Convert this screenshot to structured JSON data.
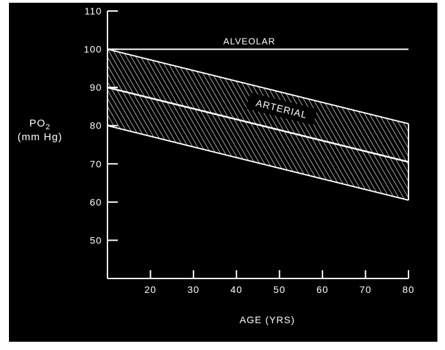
{
  "chart_data": {
    "type": "line",
    "title": "",
    "ylabel_line1": "PO",
    "ylabel_sub": "2",
    "ylabel_line2": "(mm Hg)",
    "xlabel": "AGE (YRS)",
    "xlim": [
      10,
      80
    ],
    "ylim": [
      40,
      110
    ],
    "xticks": [
      20,
      30,
      40,
      50,
      60,
      70,
      80
    ],
    "yticks": [
      50,
      60,
      70,
      80,
      90,
      100,
      110
    ],
    "grid": false,
    "series": [
      {
        "name": "ALVEOLAR",
        "x": [
          10,
          80
        ],
        "y": [
          100,
          100
        ]
      },
      {
        "name": "ARTERIAL",
        "x": [
          10,
          80
        ],
        "y": [
          90,
          70.5
        ]
      }
    ],
    "band": {
      "x": [
        10,
        80
      ],
      "upper": [
        100,
        80.5
      ],
      "lower": [
        80,
        60.5
      ]
    }
  }
}
